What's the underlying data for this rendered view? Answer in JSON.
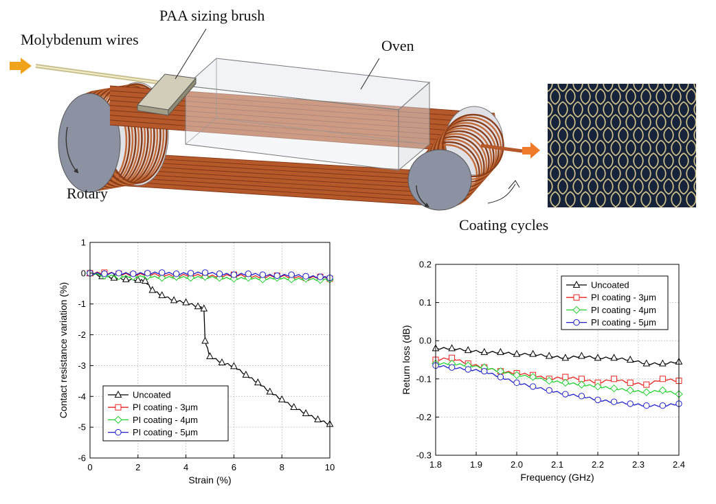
{
  "diagram": {
    "labels": {
      "wires": "Molybdenum wires",
      "brush": "PAA sizing brush",
      "oven": "Oven",
      "rotary": "Rotary",
      "cycles": "Coating cycles"
    },
    "colors": {
      "copper": "#b5582a",
      "roller": "#9aa0ad",
      "arrow": "#f0a21a",
      "mesh_bg": "#17233b",
      "mesh_wire": "#d8c98c"
    }
  },
  "chart_data": [
    {
      "type": "line",
      "xlabel": "Strain (%)",
      "ylabel": "Contact resistance variation (%)",
      "xlim": [
        0,
        10
      ],
      "ylim": [
        -6,
        1
      ],
      "xticks": [
        "0",
        "2",
        "4",
        "6",
        "8",
        "10"
      ],
      "yticks": [
        "1",
        "0",
        "-1",
        "-2",
        "-3",
        "-4",
        "-5",
        "-6"
      ],
      "grid": true,
      "legend": "bottom-left",
      "series": [
        {
          "name": "Uncoated",
          "color": "#000000",
          "marker": "triangle",
          "x": [
            0,
            0.5,
            1.0,
            1.5,
            2.0,
            2.3,
            2.6,
            3.0,
            3.5,
            4.0,
            4.5,
            4.75,
            4.8,
            5.0,
            5.5,
            6.0,
            6.5,
            7.0,
            7.5,
            8.0,
            8.5,
            9.0,
            9.5,
            10.0
          ],
          "y": [
            0,
            -0.1,
            -0.15,
            -0.2,
            -0.22,
            -0.25,
            -0.55,
            -0.72,
            -0.88,
            -0.95,
            -1.08,
            -1.15,
            -2.2,
            -2.7,
            -2.9,
            -3.02,
            -3.3,
            -3.55,
            -3.85,
            -4.1,
            -4.35,
            -4.55,
            -4.75,
            -4.9
          ]
        },
        {
          "name": "PI coating - 3μm",
          "color": "#e8231f",
          "marker": "square",
          "x": [
            0,
            0.6,
            1.2,
            1.8,
            2.4,
            3.0,
            3.6,
            4.2,
            4.8,
            5.4,
            6.0,
            6.6,
            7.2,
            7.8,
            8.4,
            9.0,
            9.6,
            10.0
          ],
          "y": [
            0,
            0.02,
            -0.02,
            -0.05,
            -0.03,
            -0.05,
            -0.08,
            -0.05,
            -0.08,
            -0.1,
            -0.05,
            -0.1,
            -0.12,
            -0.08,
            -0.12,
            -0.15,
            -0.12,
            -0.18
          ]
        },
        {
          "name": "PI coating - 4μm",
          "color": "#22d030",
          "marker": "diamond",
          "x": [
            0,
            0.6,
            1.2,
            1.8,
            2.4,
            3.0,
            3.6,
            4.2,
            4.8,
            5.4,
            6.0,
            6.6,
            7.2,
            7.8,
            8.4,
            9.0,
            9.6,
            10.0
          ],
          "y": [
            0,
            -0.08,
            -0.1,
            -0.12,
            -0.1,
            -0.15,
            -0.12,
            -0.15,
            -0.12,
            -0.15,
            -0.18,
            -0.15,
            -0.2,
            -0.15,
            -0.2,
            -0.18,
            -0.22,
            -0.2
          ]
        },
        {
          "name": "PI coating - 5μm",
          "color": "#2020c8",
          "marker": "circle",
          "x": [
            0,
            0.6,
            1.2,
            1.8,
            2.4,
            3.0,
            3.6,
            4.2,
            4.8,
            5.4,
            6.0,
            6.6,
            7.2,
            7.8,
            8.4,
            9.0,
            9.6,
            10.0
          ],
          "y": [
            0,
            -0.02,
            0,
            -0.02,
            0,
            0.02,
            -0.02,
            0,
            0.02,
            -0.02,
            -0.05,
            -0.02,
            -0.05,
            -0.08,
            -0.05,
            -0.1,
            -0.12,
            -0.15
          ]
        }
      ]
    },
    {
      "type": "line",
      "xlabel": "Frequency (GHz)",
      "ylabel": "Return loss (dB)",
      "xlim": [
        1.8,
        2.4
      ],
      "ylim": [
        -0.3,
        0.2
      ],
      "xticks": [
        "1.8",
        "1.9",
        "2.0",
        "2.1",
        "2.2",
        "2.3",
        "2.4"
      ],
      "yticks": [
        "0.2",
        "0.1",
        "0.0",
        "-0.1",
        "-0.2",
        "-0.3"
      ],
      "grid": true,
      "legend": "top-right",
      "series": [
        {
          "name": "Uncoated",
          "color": "#000000",
          "marker": "triangle",
          "x": [
            1.8,
            1.84,
            1.88,
            1.92,
            1.96,
            2.0,
            2.04,
            2.08,
            2.12,
            2.16,
            2.2,
            2.24,
            2.28,
            2.32,
            2.36,
            2.4
          ],
          "y": [
            -0.02,
            -0.02,
            -0.025,
            -0.03,
            -0.03,
            -0.035,
            -0.035,
            -0.04,
            -0.045,
            -0.04,
            -0.045,
            -0.045,
            -0.05,
            -0.06,
            -0.06,
            -0.055
          ]
        },
        {
          "name": "PI coating - 3μm",
          "color": "#e8231f",
          "marker": "square",
          "x": [
            1.8,
            1.84,
            1.88,
            1.92,
            1.96,
            2.0,
            2.04,
            2.08,
            2.12,
            2.16,
            2.2,
            2.24,
            2.28,
            2.32,
            2.36,
            2.4
          ],
          "y": [
            -0.05,
            -0.045,
            -0.06,
            -0.07,
            -0.08,
            -0.085,
            -0.09,
            -0.1,
            -0.095,
            -0.1,
            -0.11,
            -0.1,
            -0.11,
            -0.115,
            -0.1,
            -0.105
          ]
        },
        {
          "name": "PI coating - 4μm",
          "color": "#22d030",
          "marker": "diamond",
          "x": [
            1.8,
            1.84,
            1.88,
            1.92,
            1.96,
            2.0,
            2.04,
            2.08,
            2.12,
            2.16,
            2.2,
            2.24,
            2.28,
            2.32,
            2.36,
            2.4
          ],
          "y": [
            -0.06,
            -0.06,
            -0.065,
            -0.07,
            -0.08,
            -0.09,
            -0.095,
            -0.105,
            -0.11,
            -0.115,
            -0.12,
            -0.125,
            -0.13,
            -0.135,
            -0.13,
            -0.14
          ]
        },
        {
          "name": "PI coating - 5μm",
          "color": "#2020c8",
          "marker": "circle",
          "x": [
            1.8,
            1.84,
            1.88,
            1.92,
            1.96,
            2.0,
            2.04,
            2.08,
            2.12,
            2.16,
            2.2,
            2.24,
            2.28,
            2.32,
            2.36,
            2.4
          ],
          "y": [
            -0.065,
            -0.07,
            -0.075,
            -0.08,
            -0.095,
            -0.11,
            -0.12,
            -0.13,
            -0.14,
            -0.145,
            -0.155,
            -0.16,
            -0.165,
            -0.17,
            -0.17,
            -0.165
          ]
        }
      ]
    }
  ]
}
